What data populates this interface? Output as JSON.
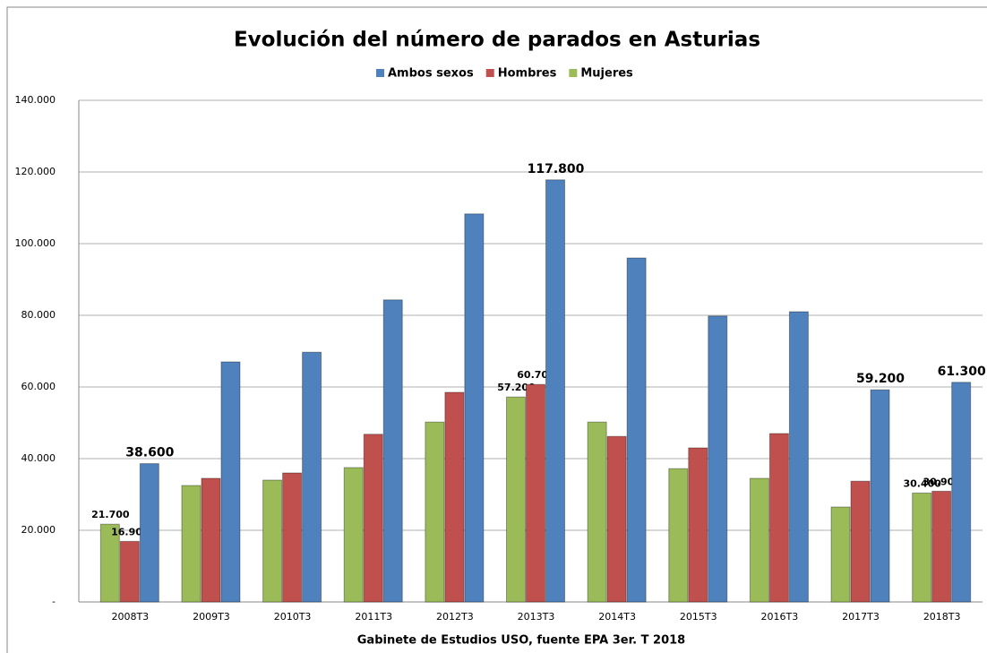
{
  "chart_data": {
    "type": "bar",
    "title": "Evolución del número de parados en Asturias",
    "x_label": "Gabinete de Estudios USO, fuente EPA 3er. T 2018",
    "categories": [
      "2008T3",
      "2009T3",
      "2010T3",
      "2011T3",
      "2012T3",
      "2013T3",
      "2014T3",
      "2015T3",
      "2016T3",
      "2017T3",
      "2018T3"
    ],
    "series": [
      {
        "name": "Mujeres",
        "color": "#9bbb59",
        "values": [
          21700,
          32500,
          34000,
          37500,
          50200,
          57200,
          50200,
          37200,
          34500,
          26500,
          30400
        ],
        "value_labels": [
          "21.700",
          null,
          null,
          null,
          null,
          "57.200",
          null,
          null,
          null,
          null,
          "30.400"
        ]
      },
      {
        "name": "Hombres",
        "color": "#c0504d",
        "values": [
          16900,
          34500,
          36000,
          46800,
          58500,
          60700,
          46200,
          43000,
          47000,
          33700,
          30900
        ],
        "value_labels": [
          "16.900",
          null,
          null,
          null,
          null,
          "60.700",
          null,
          null,
          null,
          null,
          "30.900"
        ]
      },
      {
        "name": "Ambos sexos",
        "color": "#4f81bd",
        "values": [
          38600,
          67000,
          69700,
          84300,
          108300,
          117800,
          96000,
          79800,
          81000,
          59200,
          61300
        ],
        "value_labels": [
          "38.600",
          null,
          null,
          null,
          null,
          "117.800",
          null,
          null,
          null,
          "59.200",
          "61.300"
        ]
      }
    ],
    "ylim": [
      0,
      140000
    ],
    "yticks": [
      {
        "value": 0,
        "label": "-"
      },
      {
        "value": 20000,
        "label": "20.000"
      },
      {
        "value": 40000,
        "label": "40.000"
      },
      {
        "value": 60000,
        "label": "60.000"
      },
      {
        "value": 80000,
        "label": "80.000"
      },
      {
        "value": 100000,
        "label": "100.000"
      },
      {
        "value": 120000,
        "label": "120.000"
      },
      {
        "value": 140000,
        "label": "140.000"
      }
    ],
    "grid": true
  }
}
